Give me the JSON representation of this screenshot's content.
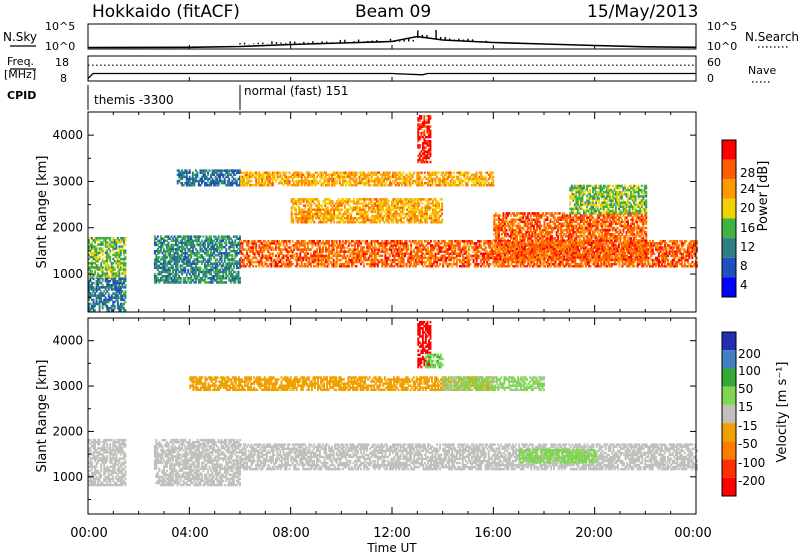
{
  "header": {
    "station": "Hokkaido (fitACF)",
    "beam": "Beam 09",
    "date": "15/May/2013"
  },
  "noise_panel": {
    "left_label": "N.Sky",
    "right_label": "N.Search",
    "left_ticks": [
      "10^5",
      "10^0"
    ],
    "right_ticks": [
      "10^5",
      "10^0"
    ]
  },
  "freq_panel": {
    "left_label": "Freq.",
    "left_unit": "[MHz]",
    "right_label": "Nave",
    "left_ticks": [
      "18",
      "8"
    ],
    "right_ticks": [
      "60",
      "0"
    ]
  },
  "cpid_panel": {
    "label": "CPID",
    "segments": [
      {
        "name": "themis -3300",
        "start_hour": 0,
        "end_hour": 6
      },
      {
        "name": "normal (fast) 151",
        "start_hour": 6,
        "end_hour": 24
      }
    ]
  },
  "power_panel": {
    "ylabel": "Slant Range [km]",
    "colorbar_label": "Power [dB]",
    "colorbar_ticks": [
      "28",
      "24",
      "20",
      "16",
      "12",
      "8",
      "4"
    ]
  },
  "velocity_panel": {
    "ylabel": "Slant Range [km]",
    "colorbar_label": "Velocity [m s⁻¹]",
    "colorbar_ticks": [
      "200",
      "100",
      "50",
      "15",
      "-15",
      "-50",
      "-100",
      "-200"
    ]
  },
  "xaxis": {
    "label": "Time UT",
    "ticks": [
      "00:00",
      "04:00",
      "08:00",
      "12:00",
      "16:00",
      "20:00",
      "00:00"
    ]
  },
  "colors": {
    "power_scale": [
      "#0000ff",
      "#1f4fbf",
      "#2e7f7f",
      "#3fb33f",
      "#f0d200",
      "#ff9900",
      "#ff5a00",
      "#ff0000"
    ],
    "velocity_scale": [
      "#2030b0",
      "#3f7fbf",
      "#33aa33",
      "#7fd64f",
      "#c0c0bc",
      "#f0a000",
      "#ff7a00",
      "#ff3000",
      "#ff0000"
    ]
  },
  "chart_data": [
    {
      "type": "line",
      "title": "Hokkaido (fitACF) Beam 09 15/May/2013",
      "series": [
        {
          "name": "N.Sky",
          "x_hour": [
            0,
            4,
            6,
            8,
            10,
            12,
            13,
            14,
            16,
            18,
            20,
            22,
            24
          ],
          "y_log": [
            0.3,
            0.35,
            0.5,
            0.9,
            1.2,
            1.5,
            2.5,
            1.8,
            1.3,
            1.0,
            0.7,
            0.45,
            0.35
          ]
        }
      ],
      "ylim_log": [
        0,
        5
      ]
    },
    {
      "type": "line",
      "series": [
        {
          "name": "Freq.",
          "x_hour": [
            0,
            0.2,
            6,
            12,
            13.2,
            13.4,
            24
          ],
          "y": [
            9,
            11,
            11,
            11,
            10.5,
            11,
            11
          ],
          "units": "MHz"
        },
        {
          "name": "Nave",
          "x_hour": [
            0,
            24
          ],
          "y": [
            38,
            38
          ]
        }
      ],
      "ylim_left": [
        8,
        18
      ],
      "ylim_right": [
        0,
        60
      ]
    },
    {
      "type": "heatmap",
      "title": "Power [dB]",
      "xlabel": "Time UT",
      "ylabel": "Slant Range [km]",
      "xlim_hour": [
        0,
        24
      ],
      "ylim_km": [
        180,
        4500
      ],
      "color_range": [
        0,
        30
      ],
      "scatter_regions": [
        {
          "t0": 0,
          "t1": 1.5,
          "r0": 900,
          "r1": 1800,
          "dB": 14
        },
        {
          "t0": 0,
          "t1": 1.5,
          "r0": 200,
          "r1": 900,
          "dB": 8
        },
        {
          "t0": 2.6,
          "t1": 6,
          "r0": 800,
          "r1": 1800,
          "dB": 10
        },
        {
          "t0": 3.5,
          "t1": 6,
          "r0": 2900,
          "r1": 3250,
          "dB": 8
        },
        {
          "t0": 6,
          "t1": 24,
          "r0": 1150,
          "r1": 1700,
          "dB": 24
        },
        {
          "t0": 6,
          "t1": 16,
          "r0": 2900,
          "r1": 3200,
          "dB": 20
        },
        {
          "t0": 8,
          "t1": 14,
          "r0": 2100,
          "r1": 2600,
          "dB": 20
        },
        {
          "t0": 16,
          "t1": 22,
          "r0": 1300,
          "r1": 2300,
          "dB": 24
        },
        {
          "t0": 13,
          "t1": 13.5,
          "r0": 3400,
          "r1": 4400,
          "dB": 28
        },
        {
          "t0": 19,
          "t1": 22,
          "r0": 2300,
          "r1": 2900,
          "dB": 14
        }
      ]
    },
    {
      "type": "heatmap",
      "title": "Velocity [m s⁻¹]",
      "xlabel": "Time UT",
      "ylabel": "Slant Range [km]",
      "xlim_hour": [
        0,
        24
      ],
      "ylim_km": [
        180,
        4500
      ],
      "color_range": [
        -200,
        200
      ],
      "scatter_regions": [
        {
          "t0": 0,
          "t1": 1.5,
          "r0": 800,
          "r1": 1800,
          "v": 0
        },
        {
          "t0": 2.6,
          "t1": 6,
          "r0": 800,
          "r1": 1800,
          "v": 0
        },
        {
          "t0": 6,
          "t1": 24,
          "r0": 1150,
          "r1": 1700,
          "v": 0
        },
        {
          "t0": 4,
          "t1": 16,
          "r0": 2900,
          "r1": 3200,
          "v": -40
        },
        {
          "t0": 13,
          "t1": 13.5,
          "r0": 3400,
          "r1": 4400,
          "v": -200
        },
        {
          "t0": 13.3,
          "t1": 14,
          "r0": 3400,
          "r1": 3700,
          "v": 60
        },
        {
          "t0": 17,
          "t1": 20,
          "r0": 1300,
          "r1": 1600,
          "v": 40
        },
        {
          "t0": 14,
          "t1": 18,
          "r0": 2900,
          "r1": 3200,
          "v": 30
        }
      ]
    }
  ]
}
